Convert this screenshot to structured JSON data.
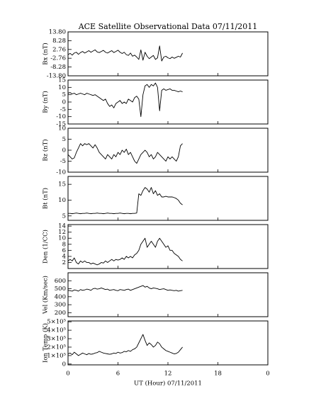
{
  "chart_data": {
    "type": "line",
    "title": "ACE Satellite Observational Data   07/11/2011",
    "xlabel": "UT (Hour)   07/11/2011",
    "xlim": [
      0,
      24
    ],
    "xticks": [
      {
        "value": 0,
        "label": "0"
      },
      6,
      12,
      18,
      {
        "value": 24,
        "label": "0"
      }
    ],
    "x": [
      0,
      0.25,
      0.5,
      0.75,
      1,
      1.25,
      1.5,
      1.75,
      2,
      2.25,
      2.5,
      2.75,
      3,
      3.25,
      3.5,
      3.75,
      4,
      4.25,
      4.5,
      4.75,
      5,
      5.25,
      5.5,
      5.75,
      6,
      6.25,
      6.5,
      6.75,
      7,
      7.25,
      7.5,
      7.75,
      8,
      8.25,
      8.5,
      8.75,
      9,
      9.25,
      9.5,
      9.75,
      10,
      10.25,
      10.5,
      10.75,
      11,
      11.25,
      11.5,
      11.75,
      12,
      12.25,
      12.5,
      12.75,
      13,
      13.25,
      13.5,
      13.75
    ],
    "panels": [
      {
        "ylabel": "Bx (nT)",
        "color": "#000000",
        "ylim": [
          -13.8,
          13.8
        ],
        "yticks": [
          {
            "value": -13.8,
            "label": "-13.80"
          },
          -8.28,
          -2.76,
          2.76,
          8.28,
          {
            "value": 13.8,
            "label": "13.80"
          }
        ],
        "values": [
          -0.5,
          0.3,
          -0.8,
          0.5,
          1.0,
          -0.3,
          0.8,
          1.5,
          0.5,
          1.2,
          2.0,
          1.0,
          1.8,
          2.5,
          1.2,
          0.8,
          1.5,
          2.2,
          1.0,
          0.5,
          1.3,
          2.0,
          0.8,
          1.5,
          2.3,
          1.0,
          0.2,
          1.0,
          -0.5,
          -1.0,
          0.5,
          -1.5,
          -0.8,
          -2.0,
          -3.5,
          2.5,
          -4.0,
          1.0,
          -1.5,
          -3.0,
          -2.0,
          -1.0,
          -3.5,
          -2.5,
          5.0,
          -4.5,
          -2.0,
          -1.5,
          -2.5,
          -3.0,
          -2.0,
          -2.8,
          -2.2,
          -1.5,
          -2.0,
          0.5
        ]
      },
      {
        "ylabel": "By (nT)",
        "color": "#000000",
        "ylim": [
          -15,
          15
        ],
        "yticks": [
          -15,
          -10,
          -5,
          0,
          5,
          10,
          15
        ],
        "values": [
          6,
          6.5,
          5.5,
          6,
          5,
          5.5,
          6,
          5.5,
          5,
          6,
          5.5,
          5,
          4.5,
          5,
          4,
          3,
          2,
          1,
          2,
          -1,
          -3,
          -2,
          -4,
          -1,
          0,
          1,
          -1,
          0,
          -1,
          2,
          1,
          0,
          3,
          4,
          2,
          -10,
          5,
          11,
          12,
          10,
          12,
          11,
          13,
          10,
          -6,
          8,
          9,
          8,
          8.5,
          9,
          8,
          8,
          7.5,
          7,
          7.5,
          7
        ]
      },
      {
        "ylabel": "Bz (nT)",
        "color": "#000000",
        "ylim": [
          -10,
          10
        ],
        "yticks": [
          -10,
          -5,
          0,
          5,
          10
        ],
        "values": [
          -2,
          -3,
          -4,
          -3.5,
          -1,
          1,
          3,
          2,
          3,
          2.5,
          3,
          2,
          1,
          2.5,
          1,
          -1,
          -2,
          -3,
          -4,
          -2,
          -3,
          -4,
          -2,
          -3,
          -1,
          -2,
          0,
          -1,
          0.5,
          -2,
          -1,
          -3,
          -5,
          -6,
          -4,
          -2,
          -1,
          0,
          -1,
          -3,
          -2,
          -4,
          -3,
          -1,
          -2,
          -3,
          -4,
          -5,
          -3,
          -4,
          -3,
          -4,
          -5,
          -3,
          2,
          3
        ]
      },
      {
        "ylabel": "Bt (nT)",
        "color": "#000000",
        "ylim": [
          3.6,
          17.5
        ],
        "yticks": [
          5,
          10,
          15
        ],
        "values": [
          5.8,
          5.8,
          5.7,
          5.8,
          5.9,
          5.8,
          5.7,
          5.8,
          5.8,
          5.9,
          5.8,
          5.7,
          5.8,
          5.8,
          5.9,
          5.8,
          5.8,
          5.7,
          5.8,
          5.9,
          5.8,
          5.8,
          5.7,
          5.8,
          5.8,
          5.9,
          5.8,
          5.7,
          5.8,
          5.8,
          5.7,
          5.8,
          5.8,
          5.9,
          12,
          11.5,
          13,
          14,
          13.5,
          12.5,
          14,
          12,
          13,
          11.5,
          12,
          11,
          11,
          11.2,
          11,
          11,
          11,
          10.8,
          10.5,
          10,
          9,
          8.5
        ]
      },
      {
        "ylabel": "Den (1/CC)",
        "color": "#000000",
        "ylim": [
          0,
          14.5
        ],
        "yticks": [
          2,
          4,
          6,
          8,
          10,
          12,
          14
        ],
        "values": [
          2.5,
          3,
          2.5,
          3.5,
          2,
          1.5,
          2.5,
          2,
          2.5,
          2,
          2,
          1.5,
          1.8,
          1.5,
          1.2,
          1.5,
          2,
          1.8,
          2.5,
          2,
          2.5,
          3,
          2.5,
          3,
          2.8,
          3,
          3.5,
          3,
          4,
          3.5,
          4,
          3.5,
          4.5,
          5,
          6,
          8,
          9,
          10,
          7,
          8,
          9,
          8,
          7,
          9,
          10,
          9,
          8,
          7,
          7.5,
          6,
          6,
          5,
          4.5,
          4,
          3,
          2.5
        ]
      },
      {
        "ylabel": "Vel (Km/sec)",
        "color": "#000000",
        "ylim": [
          150,
          700
        ],
        "yticks": [
          200,
          300,
          400,
          500,
          600
        ],
        "values": [
          480,
          475,
          470,
          485,
          480,
          470,
          490,
          480,
          485,
          495,
          490,
          480,
          500,
          505,
          495,
          500,
          510,
          500,
          490,
          495,
          480,
          485,
          490,
          480,
          475,
          490,
          485,
          480,
          490,
          495,
          480,
          490,
          500,
          510,
          520,
          530,
          540,
          520,
          530,
          510,
          500,
          510,
          505,
          500,
          490,
          495,
          500,
          490,
          480,
          485,
          480,
          475,
          480,
          470,
          475,
          480
        ]
      },
      {
        "ylabel": "Ion Temp (K)",
        "color": "#000000",
        "ylim": [
          -10000,
          510000
        ],
        "yticks": [
          0,
          {
            "value": 100000,
            "label": "1×10⁵"
          },
          {
            "value": 200000,
            "label": "2×10⁵"
          },
          {
            "value": 300000,
            "label": "3×10⁵"
          },
          {
            "value": 400000,
            "label": "4×10⁵"
          },
          {
            "value": 500000,
            "label": "5×10⁵"
          }
        ],
        "values": [
          120000,
          130000,
          110000,
          140000,
          120000,
          100000,
          115000,
          130000,
          120000,
          110000,
          125000,
          115000,
          120000,
          130000,
          135000,
          150000,
          140000,
          130000,
          125000,
          120000,
          115000,
          120000,
          130000,
          125000,
          140000,
          130000,
          135000,
          150000,
          145000,
          160000,
          150000,
          170000,
          180000,
          200000,
          250000,
          300000,
          350000,
          280000,
          220000,
          250000,
          230000,
          200000,
          220000,
          260000,
          240000,
          200000,
          180000,
          160000,
          150000,
          140000,
          130000,
          120000,
          125000,
          140000,
          170000,
          200000
        ]
      }
    ]
  }
}
